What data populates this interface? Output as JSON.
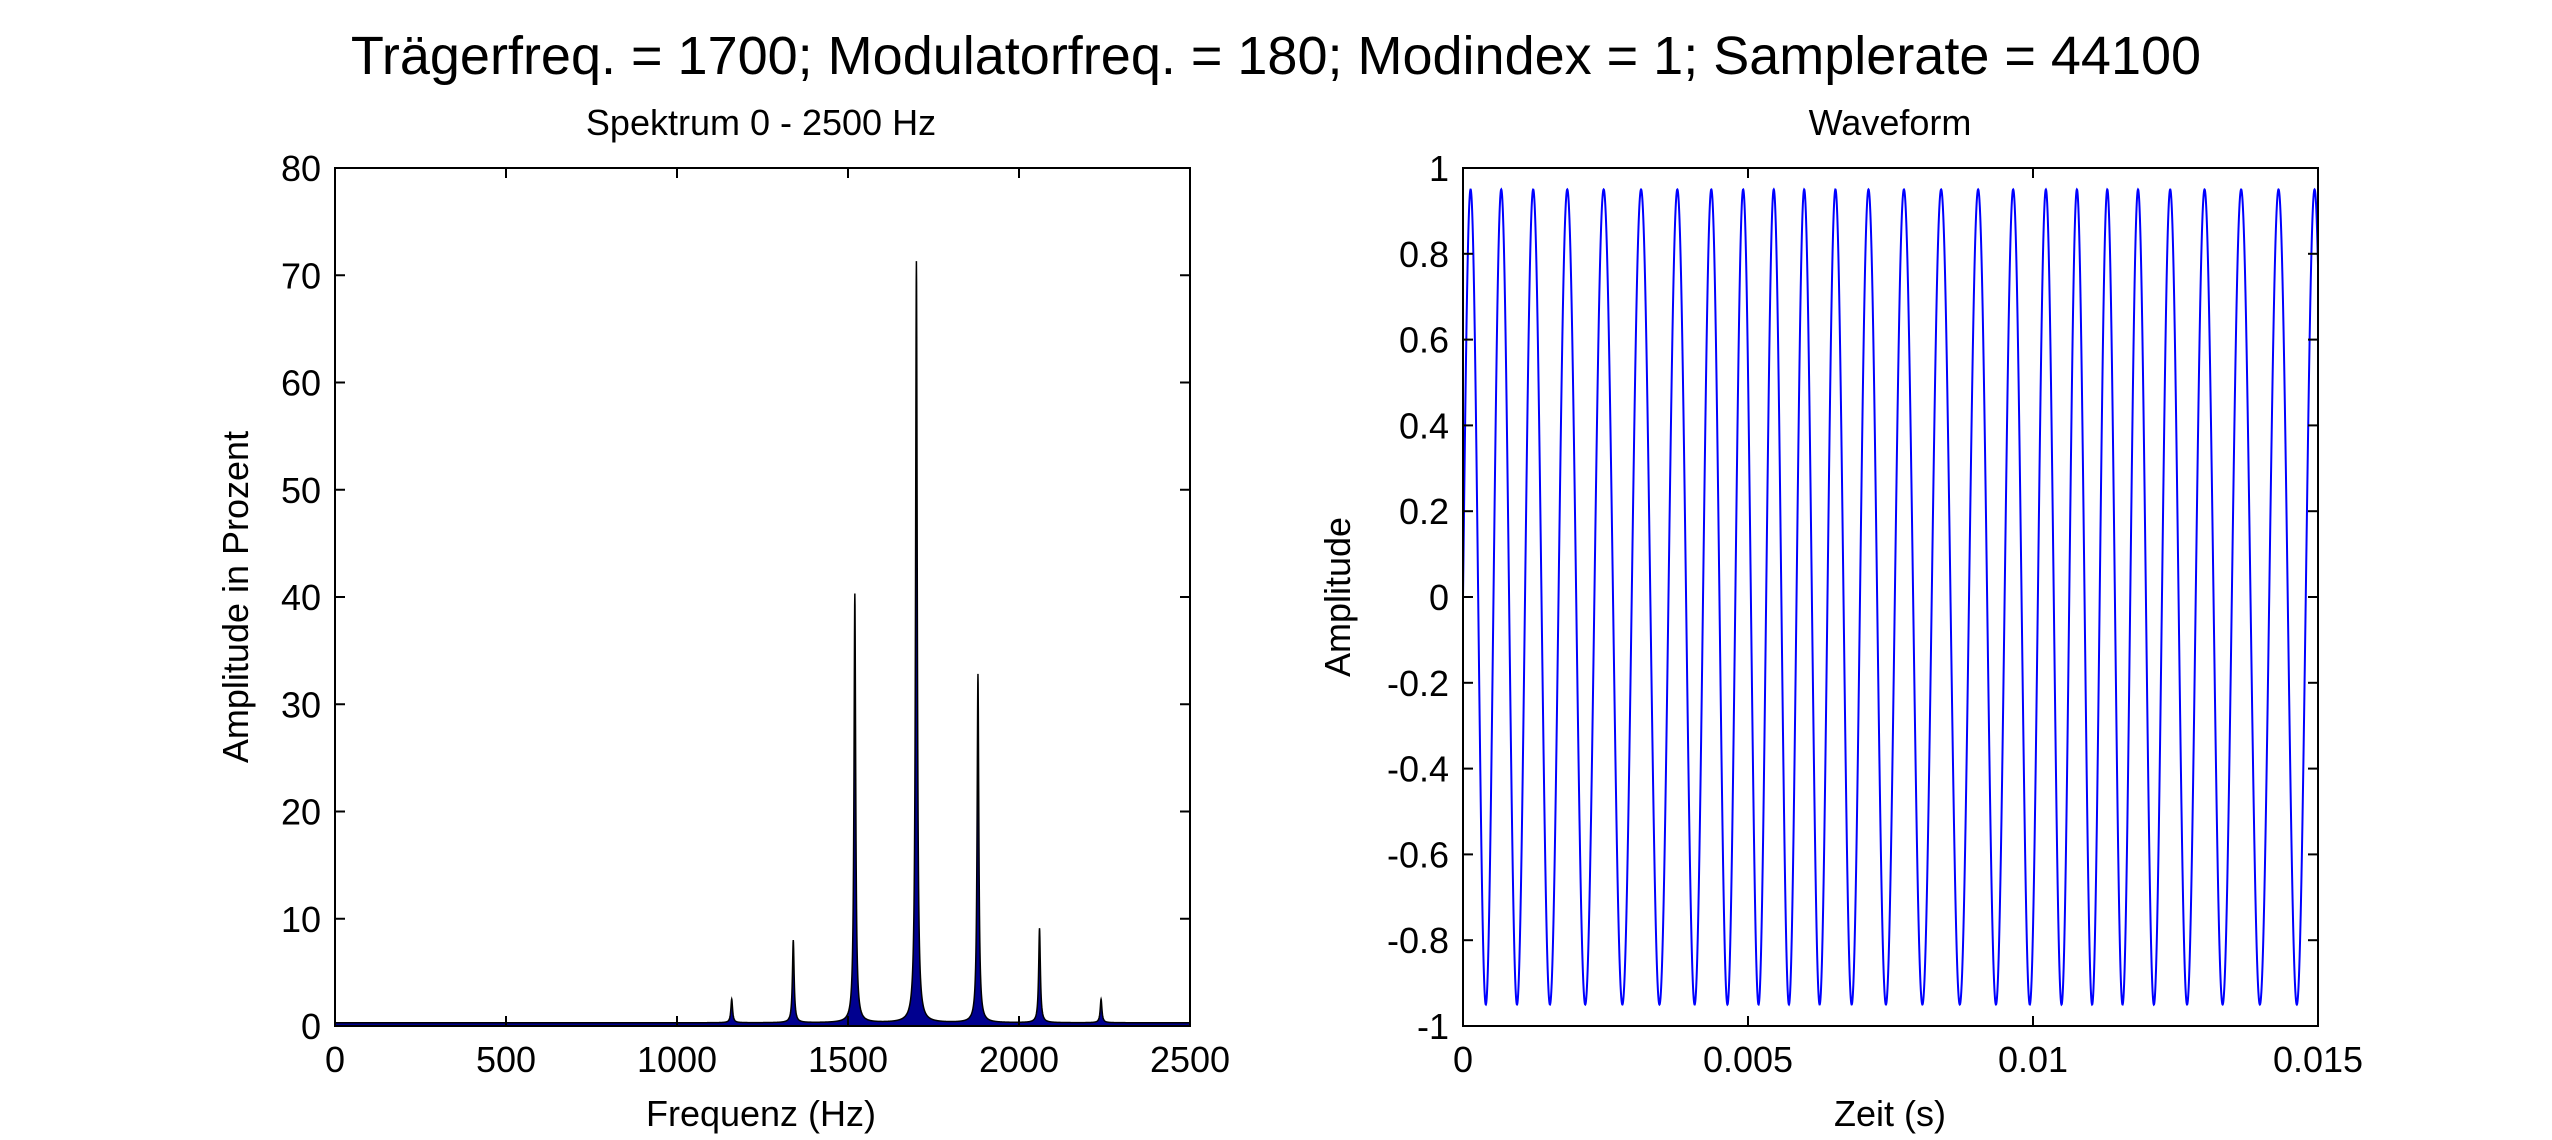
{
  "figure": {
    "suptitle": "Trägerfreq. = 1700;  Modulatorfreq. = 180;  Modindex = 1;  Samplerate = 44100"
  },
  "chart_data": [
    {
      "type": "area",
      "title": "Spektrum 0 - 2500 Hz",
      "xlabel": "Frequenz (Hz)",
      "ylabel": "Amplitude in Prozent",
      "xlim": [
        0,
        2500
      ],
      "ylim": [
        0,
        80
      ],
      "xticks": [
        0,
        500,
        1000,
        1500,
        2000,
        2500
      ],
      "yticks": [
        0,
        10,
        20,
        30,
        40,
        50,
        60,
        70,
        80
      ],
      "grid": false,
      "fill_color": "#00008f",
      "edge_color": "#000000",
      "baseline": 0.3,
      "peaks": [
        {
          "x": 1160,
          "y": 2.2
        },
        {
          "x": 1340,
          "y": 7.7
        },
        {
          "x": 1520,
          "y": 40
        },
        {
          "x": 1700,
          "y": 71
        },
        {
          "x": 1880,
          "y": 32.5
        },
        {
          "x": 2060,
          "y": 8.8
        },
        {
          "x": 2240,
          "y": 2.2
        }
      ]
    },
    {
      "type": "line",
      "title": "Waveform",
      "xlabel": "Zeit (s)",
      "ylabel": "Amplitude",
      "xlim": [
        0,
        0.015
      ],
      "ylim": [
        -1,
        1
      ],
      "xticks": [
        0,
        0.005,
        0.01,
        0.015
      ],
      "xtick_labels": [
        "0",
        "0.005",
        "0.01",
        "0.015"
      ],
      "yticks": [
        -1,
        -0.8,
        -0.6,
        -0.4,
        -0.2,
        0,
        0.2,
        0.4,
        0.6,
        0.8,
        1
      ],
      "ytick_labels": [
        "-1",
        "-0.8",
        "-0.6",
        "-0.4",
        "-0.2",
        "0",
        "0.2",
        "0.4",
        "0.6",
        "0.8",
        "1"
      ],
      "grid": false,
      "line_color": "#0000ff",
      "signal": {
        "carrier_hz": 1700,
        "modulator_hz": 180,
        "mod_index": 1,
        "amplitude": 0.95
      }
    }
  ]
}
